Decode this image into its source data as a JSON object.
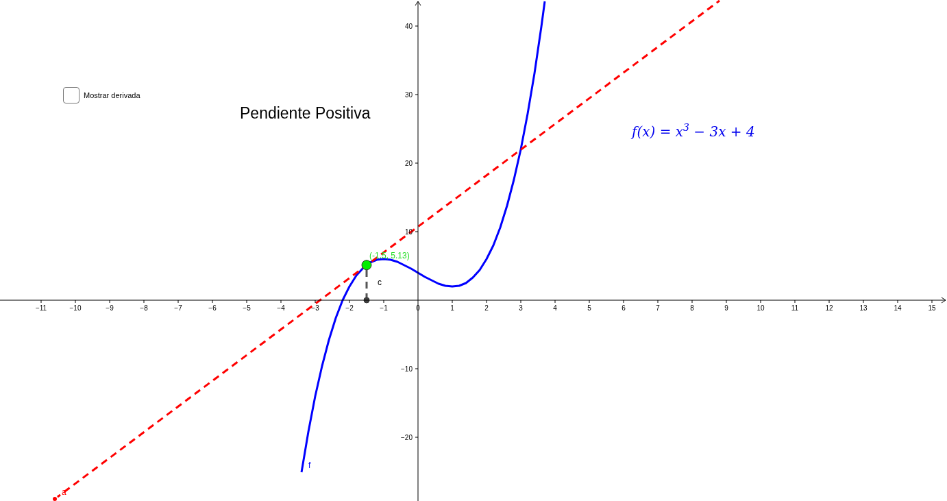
{
  "chart_data": {
    "type": "line",
    "title": "Pendiente Positiva",
    "xlim": [
      -12.2,
      15.44
    ],
    "ylim": [
      -29.3,
      43.8
    ],
    "xticks": [
      {
        "value": -11,
        "label": "−11"
      },
      {
        "value": -10,
        "label": "−10"
      },
      {
        "value": -9,
        "label": "−9"
      },
      {
        "value": -8,
        "label": "−8"
      },
      {
        "value": -7,
        "label": "−7"
      },
      {
        "value": -6,
        "label": "−6"
      },
      {
        "value": -5,
        "label": "−5"
      },
      {
        "value": -4,
        "label": "−4"
      },
      {
        "value": -3,
        "label": "−3"
      },
      {
        "value": -2,
        "label": "−2"
      },
      {
        "value": -1,
        "label": "−1"
      },
      0,
      1,
      2,
      3,
      4,
      5,
      6,
      7,
      8,
      9,
      10,
      11,
      12,
      13,
      14,
      15
    ],
    "yticks": [
      {
        "value": -20,
        "label": "−20"
      },
      {
        "value": -10,
        "label": "−10"
      },
      10,
      20,
      30,
      40
    ],
    "grid": false,
    "annotations": [
      "Mostrar derivada",
      "f(x) = x$^{3}$ − 3x + 4",
      {
        "text": "(-1.5, 5.13)",
        "x": -1.5,
        "y": 5.13
      }
    ],
    "series": [
      {
        "name": "f",
        "color": "#0000ff",
        "line_style": "solid",
        "x": [
          -3.4,
          -3.2,
          -3,
          -2.8,
          -2.6,
          -2.4,
          -2.2,
          -2,
          -1.8,
          -1.6,
          -1.4,
          -1.2,
          -1,
          -0.8,
          -0.6,
          -0.4,
          -0.2,
          0,
          0.2,
          0.4,
          0.6,
          0.8,
          1,
          1.2,
          1.4,
          1.6,
          1.8,
          2,
          2.2,
          2.4,
          2.6,
          2.8,
          3,
          3.2,
          3.4,
          3.6,
          3.7
        ],
        "values": [
          -25.1,
          -19.2,
          -14,
          -9.6,
          -5.8,
          -2.6,
          0,
          2,
          3.6,
          4.7,
          5.5,
          5.9,
          6,
          5.9,
          5.6,
          5.1,
          4.6,
          4,
          3.4,
          2.9,
          2.4,
          2.1,
          2,
          2.1,
          2.5,
          3.3,
          4.4,
          6,
          8,
          10.6,
          13.8,
          17.6,
          22,
          27.2,
          33.1,
          39.9,
          43.6
        ]
      },
      {
        "name": "a",
        "color": "#ff0000",
        "line_style": "dashed",
        "x": [
          -10.6,
          8.8
        ],
        "values": [
          -29,
          43.7
        ]
      },
      {
        "name": "c",
        "color": "#555555",
        "line_style": "dashed",
        "x": [
          -1.5,
          -1.5
        ],
        "values": [
          0,
          5.13
        ]
      },
      {
        "type": "scatter",
        "color": "#00ee00",
        "x": [
          -1.5
        ],
        "values": [
          5.13
        ]
      },
      {
        "type": "scatter",
        "color": "#404040",
        "x": [
          -1.5
        ],
        "values": [
          0
        ]
      }
    ]
  }
}
